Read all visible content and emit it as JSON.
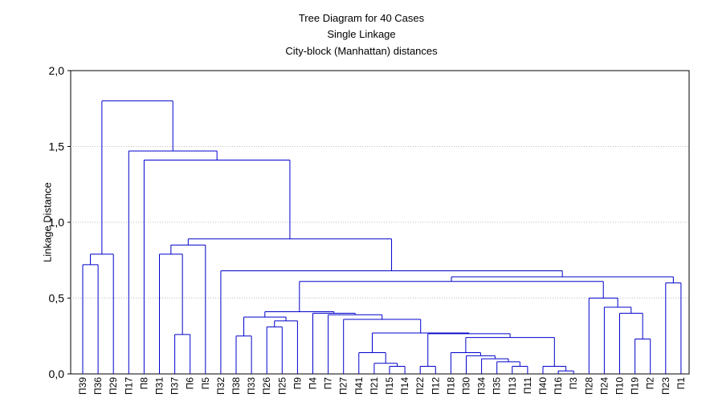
{
  "chart_data": {
    "type": "dendrogram",
    "title_lines": [
      "Tree Diagram for 40 Cases",
      "Single Linkage",
      "City-block (Manhattan) distances"
    ],
    "ylabel": "Linkage Distance",
    "ylim": [
      0,
      2.0
    ],
    "yticks": [
      {
        "value": 0,
        "label": "0,0"
      },
      {
        "value": 0.5,
        "label": "0,5"
      },
      {
        "value": 1.0,
        "label": "1,0"
      },
      {
        "value": 1.5,
        "label": "1,5"
      },
      {
        "value": 2.0,
        "label": "2,0"
      }
    ],
    "grid": true,
    "color": "#0000cc",
    "tree": {
      "height": 1.8,
      "children": [
        {
          "height": 0.79,
          "children": [
            {
              "height": 0.72,
              "children": [
                "П39",
                "П36"
              ]
            },
            "П29"
          ]
        },
        {
          "height": 1.47,
          "children": [
            "П17",
            {
              "height": 1.41,
              "children": [
                "П8",
                {
                  "height": 0.89,
                  "children": [
                    {
                      "height": 0.85,
                      "children": [
                        {
                          "height": 0.79,
                          "children": [
                            "П31",
                            {
                              "height": 0.26,
                              "children": [
                                "П37",
                                "П6"
                              ]
                            }
                          ]
                        },
                        "П5"
                      ]
                    },
                    {
                      "height": 0.68,
                      "children": [
                        "П32",
                        {
                          "height": 0.64,
                          "children": [
                            {
                              "height": 0.61,
                              "children": [
                                {
                                  "height": 0.41,
                                  "children": [
                                    {
                                      "height": 0.375,
                                      "children": [
                                        {
                                          "height": 0.25,
                                          "children": [
                                            "П38",
                                            "П33"
                                          ]
                                        },
                                        {
                                          "height": 0.35,
                                          "children": [
                                            {
                                              "height": 0.31,
                                              "children": [
                                                "П26",
                                                "П25"
                                              ]
                                            },
                                            "П9"
                                          ]
                                        }
                                      ]
                                    },
                                    {
                                      "height": 0.4,
                                      "children": [
                                        "П4",
                                        {
                                          "height": 0.39,
                                          "children": [
                                            "П7",
                                            {
                                              "height": 0.36,
                                              "children": [
                                                "П27",
                                                {
                                                  "height": 0.27,
                                                  "children": [
                                                    {
                                                      "height": 0.14,
                                                      "children": [
                                                        "П41",
                                                        {
                                                          "height": 0.07,
                                                          "children": [
                                                            "П21",
                                                            {
                                                              "height": 0.05,
                                                              "children": [
                                                                "П15",
                                                                "П14"
                                                              ]
                                                            }
                                                          ]
                                                        }
                                                      ]
                                                    },
                                                    {
                                                      "height": 0.265,
                                                      "children": [
                                                        {
                                                          "height": 0.05,
                                                          "children": [
                                                            "П22",
                                                            "П12"
                                                          ]
                                                        },
                                                        {
                                                          "height": 0.24,
                                                          "children": [
                                                            {
                                                              "height": 0.14,
                                                              "children": [
                                                                "П18",
                                                                {
                                                                  "height": 0.12,
                                                                  "children": [
                                                                    "П30",
                                                                    {
                                                                      "height": 0.1,
                                                                      "children": [
                                                                        "П34",
                                                                        {
                                                                          "height": 0.08,
                                                                          "children": [
                                                                            "П35",
                                                                            {
                                                                              "height": 0.05,
                                                                              "children": [
                                                                                "П13",
                                                                                "П11"
                                                                              ]
                                                                            }
                                                                          ]
                                                                        }
                                                                      ]
                                                                    }
                                                                  ]
                                                                }
                                                              ]
                                                            },
                                                            {
                                                              "height": 0.05,
                                                              "children": [
                                                                "П40",
                                                                {
                                                                  "height": 0.02,
                                                                  "children": [
                                                                    "П16",
                                                                    "П3"
                                                                  ]
                                                                }
                                                              ]
                                                            }
                                                          ]
                                                        }
                                                      ]
                                                    }
                                                  ]
                                                }
                                              ]
                                            }
                                          ]
                                        }
                                      ]
                                    }
                                  ]
                                },
                                {
                                  "height": 0.5,
                                  "children": [
                                    "П28",
                                    {
                                      "height": 0.44,
                                      "children": [
                                        "П24",
                                        {
                                          "height": 0.4,
                                          "children": [
                                            "П10",
                                            {
                                              "height": 0.23,
                                              "children": [
                                                "П19",
                                                "П2"
                                              ]
                                            }
                                          ]
                                        }
                                      ]
                                    }
                                  ]
                                }
                              ]
                            },
                            {
                              "height": 0.6,
                              "children": [
                                "П23",
                                "П1"
                              ]
                            }
                          ]
                        }
                      ]
                    }
                  ]
                }
              ]
            }
          ]
        }
      ]
    }
  }
}
